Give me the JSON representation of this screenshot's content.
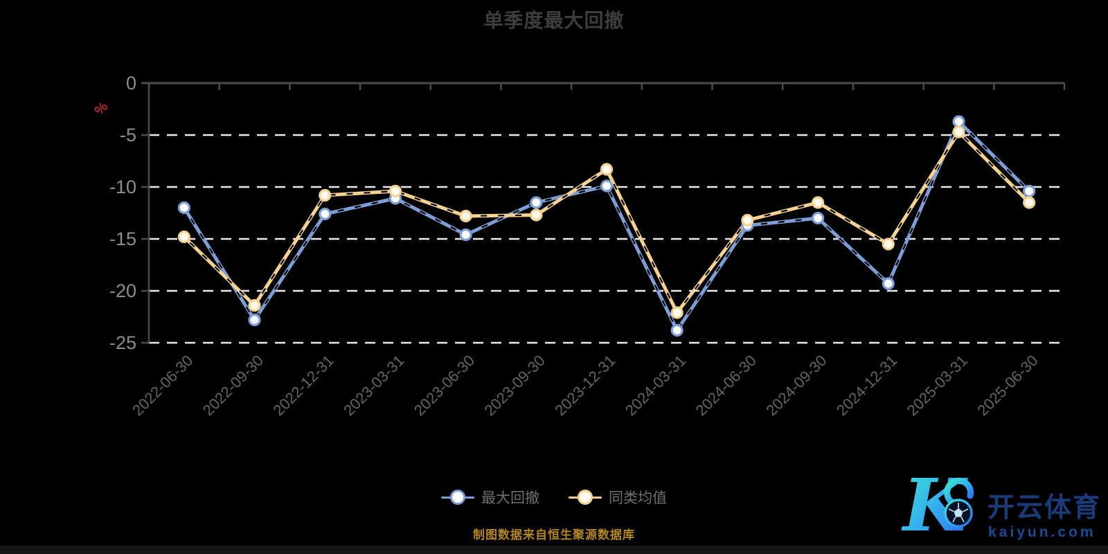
{
  "title": "单季度最大回撤",
  "y_axis": {
    "unit": "%"
  },
  "source_note": "制图数据来自恒生聚源数据库",
  "watermark": {
    "monogram": "K",
    "brand_cn": "开云体育",
    "brand_url": "kaiyun.com"
  },
  "colors": {
    "background": "#000000",
    "title": "#3d3d3d",
    "axis_line": "#4d4d4d",
    "grid_line": "#ececec",
    "y_tick_label": "#8e8e8e",
    "x_tick_label": "#646464",
    "unit_label": "#b32626",
    "legend_text": "#6e6e6e",
    "source_text": "#b5861d",
    "watermark_text": "#1c4187"
  },
  "chart_data": {
    "type": "line",
    "title": "单季度最大回撤",
    "xlabel": "",
    "ylabel": "%",
    "ylim": [
      -25,
      0
    ],
    "y_ticks": [
      0,
      -5,
      -10,
      -15,
      -20,
      -25
    ],
    "grid": "horizontal dashed white",
    "legend_position": "bottom-center",
    "categories": [
      "2022-06-30",
      "2022-09-30",
      "2022-12-31",
      "2023-03-31",
      "2023-06-30",
      "2023-09-30",
      "2023-12-31",
      "2024-03-31",
      "2024-06-30",
      "2024-09-30",
      "2024-12-31",
      "2025-03-31",
      "2025-06-30"
    ],
    "series": [
      {
        "name": "最大回撤",
        "color": "#7d9ed6",
        "marker_fill": "#ffffff",
        "values": [
          -12.0,
          -22.8,
          -12.6,
          -11.1,
          -14.6,
          -11.5,
          -9.9,
          -23.8,
          -13.7,
          -13.0,
          -19.3,
          -3.7,
          -10.4
        ]
      },
      {
        "name": "同类均值",
        "color": "#f6d392",
        "marker_fill": "#fffbef",
        "values": [
          -14.8,
          -21.4,
          -10.8,
          -10.4,
          -12.8,
          -12.7,
          -8.3,
          -22.1,
          -13.2,
          -11.5,
          -15.5,
          -4.7,
          -11.5
        ]
      }
    ]
  }
}
